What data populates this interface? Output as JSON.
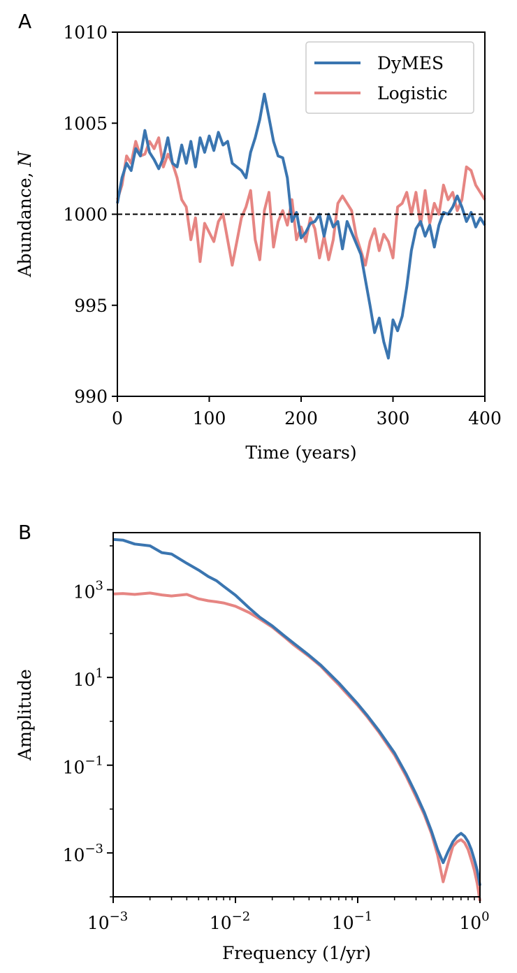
{
  "chart_data": [
    {
      "panel": "A",
      "type": "line",
      "xlabel": "Time (years)",
      "ylabel": "Abundance, N",
      "ylabel_prefix": "Abundance, ",
      "ylabel_var": "N",
      "xlim": [
        0,
        400
      ],
      "ylim": [
        990,
        1010
      ],
      "xticks": [
        0,
        100,
        200,
        300,
        400
      ],
      "xtick_labels": [
        "0",
        "100",
        "200",
        "300",
        "400"
      ],
      "yticks": [
        990,
        995,
        1000,
        1005,
        1010
      ],
      "ytick_labels": [
        "990",
        "995",
        "1000",
        "1005",
        "1010"
      ],
      "reference_line": {
        "y": 1000,
        "style": "dashed",
        "color": "#000000"
      },
      "legend": {
        "position": "top-right",
        "entries": [
          "DyMES",
          "Logistic"
        ]
      },
      "series": [
        {
          "name": "DyMES",
          "color": "#3a75b0",
          "x": [
            0,
            5,
            10,
            15,
            20,
            25,
            30,
            35,
            40,
            45,
            50,
            55,
            60,
            65,
            70,
            75,
            80,
            85,
            90,
            95,
            100,
            105,
            110,
            115,
            120,
            125,
            130,
            135,
            140,
            145,
            150,
            155,
            160,
            165,
            170,
            175,
            180,
            185,
            190,
            195,
            200,
            205,
            210,
            215,
            220,
            225,
            230,
            235,
            240,
            245,
            250,
            255,
            260,
            265,
            270,
            275,
            280,
            285,
            290,
            295,
            300,
            305,
            310,
            315,
            320,
            325,
            330,
            335,
            340,
            345,
            350,
            355,
            360,
            365,
            370,
            375,
            380,
            385,
            390,
            395,
            400
          ],
          "values": [
            1000.6,
            1002.0,
            1002.8,
            1002.4,
            1003.6,
            1003.2,
            1004.6,
            1003.4,
            1003.0,
            1002.5,
            1003.1,
            1004.2,
            1002.8,
            1002.6,
            1003.8,
            1002.8,
            1004.0,
            1002.6,
            1004.2,
            1003.4,
            1004.3,
            1003.5,
            1004.5,
            1003.8,
            1004.0,
            1002.8,
            1002.6,
            1002.4,
            1002.0,
            1003.4,
            1004.2,
            1005.2,
            1006.6,
            1005.3,
            1004.0,
            1003.2,
            1003.1,
            1002.0,
            999.6,
            1000.1,
            998.7,
            999.0,
            999.5,
            999.6,
            1000.0,
            998.8,
            1000.0,
            999.3,
            999.6,
            998.1,
            999.6,
            999.0,
            998.4,
            997.8,
            996.4,
            995.0,
            993.5,
            994.3,
            993.0,
            992.1,
            994.2,
            993.6,
            994.4,
            996.0,
            998.0,
            999.2,
            999.6,
            998.8,
            999.4,
            998.2,
            999.4,
            1000.1,
            1000.0,
            1000.4,
            1001.0,
            1000.4,
            999.6,
            1000.1,
            999.3,
            999.8,
            999.4
          ]
        },
        {
          "name": "Logistic",
          "color": "#e68582",
          "x": [
            0,
            5,
            10,
            15,
            20,
            25,
            30,
            35,
            40,
            45,
            50,
            55,
            60,
            65,
            70,
            75,
            80,
            85,
            90,
            95,
            100,
            105,
            110,
            115,
            120,
            125,
            130,
            135,
            140,
            145,
            150,
            155,
            160,
            165,
            170,
            175,
            180,
            185,
            190,
            195,
            200,
            205,
            210,
            215,
            220,
            225,
            230,
            235,
            240,
            245,
            250,
            255,
            260,
            265,
            270,
            275,
            280,
            285,
            290,
            295,
            300,
            305,
            310,
            315,
            320,
            325,
            330,
            335,
            340,
            345,
            350,
            355,
            360,
            365,
            370,
            375,
            380,
            385,
            390,
            395,
            400
          ],
          "values": [
            1000.8,
            1001.6,
            1003.2,
            1002.8,
            1004.0,
            1003.2,
            1003.3,
            1004.0,
            1003.6,
            1004.2,
            1002.6,
            1003.3,
            1002.8,
            1002.0,
            1000.8,
            1000.4,
            998.6,
            999.8,
            997.4,
            999.5,
            999.0,
            998.5,
            999.6,
            1000.0,
            998.6,
            997.2,
            998.5,
            999.8,
            1000.4,
            1001.3,
            998.6,
            997.5,
            1000.2,
            1001.2,
            998.2,
            999.6,
            1000.2,
            999.4,
            1000.8,
            998.6,
            999.3,
            998.5,
            999.8,
            999.2,
            997.6,
            998.8,
            997.5,
            998.6,
            1000.6,
            1001.0,
            1000.6,
            1000.2,
            998.8,
            998.0,
            997.2,
            998.5,
            999.2,
            998.0,
            998.9,
            998.5,
            997.6,
            1000.4,
            1000.6,
            1001.2,
            1000.0,
            1001.2,
            999.4,
            1001.3,
            999.5,
            1000.6,
            1000.0,
            1001.6,
            1000.8,
            1001.2,
            1000.2,
            1000.8,
            1002.6,
            1002.4,
            1001.6,
            1001.2,
            1000.8
          ]
        }
      ]
    },
    {
      "panel": "B",
      "type": "line",
      "xscale": "log",
      "yscale": "log",
      "xlabel": "Frequency (1/yr)",
      "ylabel": "Amplitude",
      "xlim": [
        0.001,
        1
      ],
      "ylim": [
        0.0001,
        20000
      ],
      "xticks": [
        0.001,
        0.01,
        0.1,
        1
      ],
      "xtick_labels": [
        {
          "base": "10",
          "exp": "−3"
        },
        {
          "base": "10",
          "exp": "−2"
        },
        {
          "base": "10",
          "exp": "−1"
        },
        {
          "base": "10",
          "exp": "0"
        }
      ],
      "yticks": [
        0.001,
        0.1,
        10,
        1000
      ],
      "ytick_labels": [
        {
          "base": "10",
          "exp": "−3"
        },
        {
          "base": "10",
          "exp": "−1"
        },
        {
          "base": "10",
          "exp": "1"
        },
        {
          "base": "10",
          "exp": "3"
        }
      ],
      "series": [
        {
          "name": "Logistic",
          "color": "#e68582",
          "x": [
            0.001,
            0.0012,
            0.0015,
            0.002,
            0.0025,
            0.003,
            0.004,
            0.005,
            0.006,
            0.007,
            0.008,
            0.01,
            0.013,
            0.016,
            0.02,
            0.025,
            0.03,
            0.04,
            0.05,
            0.06,
            0.07,
            0.08,
            0.1,
            0.12,
            0.15,
            0.2,
            0.25,
            0.3,
            0.35,
            0.4,
            0.45,
            0.5,
            0.55,
            0.6,
            0.65,
            0.7,
            0.75,
            0.8,
            0.85,
            0.9,
            0.95,
            1.0
          ],
          "values": [
            800,
            820,
            780,
            840,
            760,
            720,
            780,
            620,
            560,
            530,
            500,
            420,
            300,
            210,
            140,
            85,
            55,
            30,
            18,
            10.5,
            6.8,
            4.5,
            2.3,
            1.25,
            0.55,
            0.17,
            0.055,
            0.019,
            0.0075,
            0.0028,
            0.0009,
            0.00022,
            0.0006,
            0.0014,
            0.0018,
            0.002,
            0.0017,
            0.0012,
            0.0007,
            0.0004,
            0.0002,
            8e-05
          ]
        },
        {
          "name": "DyMES",
          "color": "#3a75b0",
          "x": [
            0.001,
            0.0012,
            0.0015,
            0.002,
            0.0025,
            0.003,
            0.004,
            0.005,
            0.006,
            0.007,
            0.008,
            0.01,
            0.013,
            0.016,
            0.02,
            0.025,
            0.03,
            0.04,
            0.05,
            0.06,
            0.07,
            0.08,
            0.1,
            0.12,
            0.15,
            0.2,
            0.25,
            0.3,
            0.35,
            0.4,
            0.45,
            0.5,
            0.55,
            0.6,
            0.65,
            0.7,
            0.75,
            0.8,
            0.85,
            0.9,
            0.95,
            1.0
          ],
          "values": [
            14000,
            13500,
            11000,
            10000,
            7000,
            6500,
            4000,
            2800,
            2000,
            1600,
            1200,
            750,
            380,
            230,
            150,
            90,
            60,
            32,
            19,
            11.5,
            7.5,
            5,
            2.5,
            1.35,
            0.6,
            0.19,
            0.062,
            0.022,
            0.0085,
            0.0032,
            0.0012,
            0.0006,
            0.0011,
            0.0018,
            0.0024,
            0.0028,
            0.0024,
            0.0018,
            0.0012,
            0.0007,
            0.0004,
            0.00018
          ]
        }
      ]
    }
  ]
}
